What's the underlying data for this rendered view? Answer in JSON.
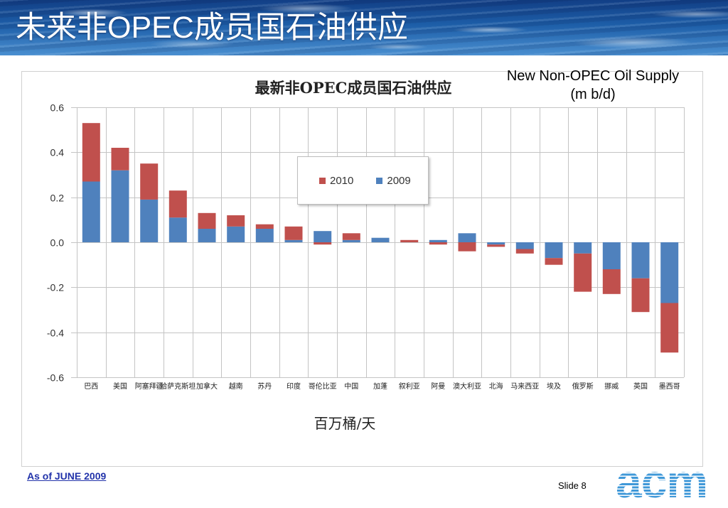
{
  "slide": {
    "title": "未来非OPEC成员国石油供应",
    "note_line1": "New Non-OPEC Oil Supply",
    "note_line2": "(m b/d)",
    "as_of": "As of JUNE 2009",
    "slide_number": "Slide 8",
    "logo_text": "acm"
  },
  "colors": {
    "banner": "#1d5ea8",
    "title_text": "#ffffff",
    "as_of_link": "#2233aa",
    "logo": "#3f98d8",
    "gridline": "#c4c4c4",
    "frame_border": "#d0d0d0"
  },
  "chart_data": {
    "type": "bar",
    "stacked": true,
    "title": "最新非OPEC成员国石油供应",
    "xlabel": "百万桶/天",
    "categories": [
      "巴西",
      "美国",
      "阿塞拜疆",
      "哈萨克斯坦",
      "加拿大",
      "越南",
      "苏丹",
      "印度",
      "哥伦比亚",
      "中国",
      "加蓬",
      "叙利亚",
      "阿曼",
      "澳大利亚",
      "北海",
      "马来西亚",
      "埃及",
      "俄罗斯",
      "挪威",
      "英国",
      "墨西哥"
    ],
    "series": [
      {
        "name": "2009",
        "color": "#4f81bd",
        "values": [
          0.27,
          0.32,
          0.19,
          0.11,
          0.06,
          0.07,
          0.06,
          0.01,
          0.05,
          0.01,
          0.02,
          0.0,
          0.01,
          0.04,
          -0.01,
          -0.03,
          -0.07,
          -0.05,
          -0.12,
          -0.16,
          -0.27
        ]
      },
      {
        "name": "2010",
        "color": "#c0504d",
        "values": [
          0.26,
          0.1,
          0.16,
          0.12,
          0.07,
          0.05,
          0.02,
          0.06,
          -0.01,
          0.03,
          0.0,
          0.01,
          -0.01,
          -0.04,
          -0.01,
          -0.02,
          -0.03,
          -0.17,
          -0.11,
          -0.15,
          -0.22
        ]
      }
    ],
    "ylim": [
      -0.6,
      0.6
    ],
    "ytick_labels": [
      "0.6",
      "0.4",
      "0.2",
      "0.0",
      "-0.2",
      "-0.4",
      "-0.6"
    ],
    "grid": true,
    "legend_position": "top-center"
  }
}
